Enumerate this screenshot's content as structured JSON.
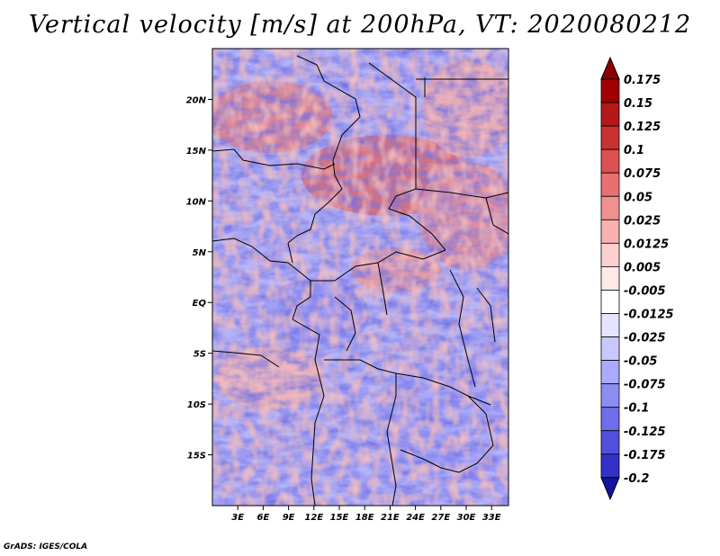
{
  "title": "Vertical velocity [m/s] at 200hPa, VT: 2020080212",
  "credit": "GrADS: IGES/COLA",
  "map": {
    "lon_range": [
      0,
      35
    ],
    "lat_range": [
      -20,
      25
    ],
    "lat_ticks": [
      {
        "value": 20,
        "label": "20N"
      },
      {
        "value": 15,
        "label": "15N"
      },
      {
        "value": 10,
        "label": "10N"
      },
      {
        "value": 5,
        "label": "5N"
      },
      {
        "value": 0,
        "label": "EQ"
      },
      {
        "value": -5,
        "label": "5S"
      },
      {
        "value": -10,
        "label": "10S"
      },
      {
        "value": -15,
        "label": "15S"
      }
    ],
    "lon_ticks": [
      {
        "value": 3,
        "label": "3E"
      },
      {
        "value": 6,
        "label": "6E"
      },
      {
        "value": 9,
        "label": "9E"
      },
      {
        "value": 12,
        "label": "12E"
      },
      {
        "value": 15,
        "label": "15E"
      },
      {
        "value": 18,
        "label": "18E"
      },
      {
        "value": 21,
        "label": "21E"
      },
      {
        "value": 24,
        "label": "24E"
      },
      {
        "value": 27,
        "label": "27E"
      },
      {
        "value": 30,
        "label": "30E"
      },
      {
        "value": 33,
        "label": "33E"
      }
    ]
  },
  "colorbar": {
    "levels": [
      {
        "label": "0.175",
        "color": "#a00000"
      },
      {
        "label": "0.15",
        "color": "#b41818"
      },
      {
        "label": "0.125",
        "color": "#c83232"
      },
      {
        "label": "0.1",
        "color": "#dc5050"
      },
      {
        "label": "0.075",
        "color": "#e87070"
      },
      {
        "label": "0.05",
        "color": "#f09090"
      },
      {
        "label": "0.025",
        "color": "#f8b0b0"
      },
      {
        "label": "0.0125",
        "color": "#fcd0d0"
      },
      {
        "label": "0.005",
        "color": "#ffe8e8"
      },
      {
        "label": "-0.005",
        "color": "#ffffff"
      },
      {
        "label": "-0.0125",
        "color": "#e4e4ff"
      },
      {
        "label": "-0.025",
        "color": "#c8c8ff"
      },
      {
        "label": "-0.05",
        "color": "#aaaaff"
      },
      {
        "label": "-0.075",
        "color": "#8c8cf5"
      },
      {
        "label": "-0.1",
        "color": "#6e6eeb"
      },
      {
        "label": "-0.125",
        "color": "#5050dc"
      },
      {
        "label": "-0.175",
        "color": "#3232c8"
      },
      {
        "label": "-0.2",
        "color": "#1e1eaa"
      }
    ],
    "top_arrow_color": "#8c0000",
    "bottom_arrow_color": "#1414a0"
  }
}
